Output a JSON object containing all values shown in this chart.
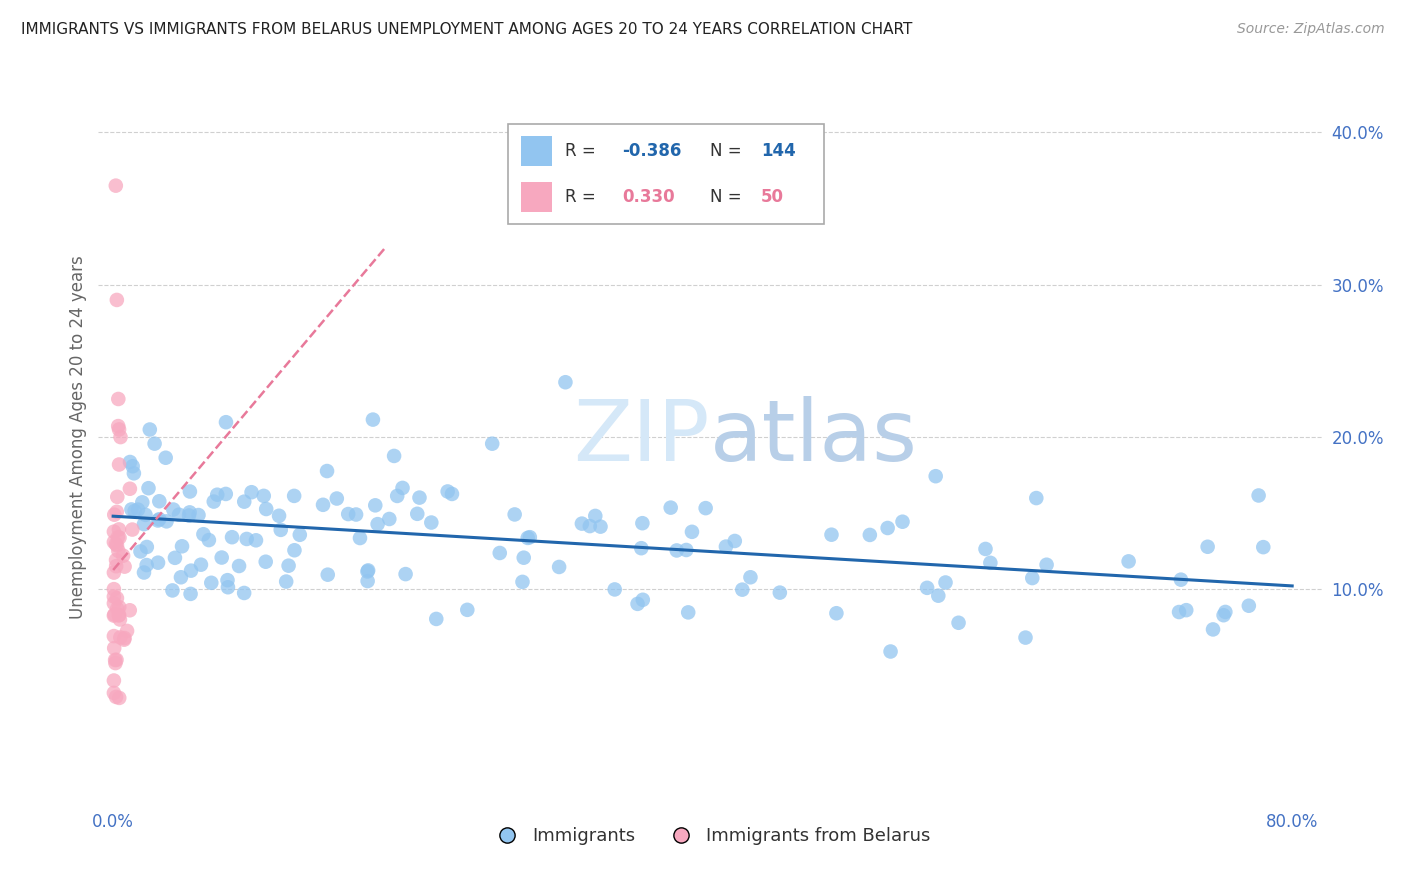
{
  "title": "IMMIGRANTS VS IMMIGRANTS FROM BELARUS UNEMPLOYMENT AMONG AGES 20 TO 24 YEARS CORRELATION CHART",
  "source": "Source: ZipAtlas.com",
  "ylabel": "Unemployment Among Ages 20 to 24 years",
  "xlim": [
    -0.01,
    0.82
  ],
  "ylim": [
    -0.04,
    0.44
  ],
  "ytick_positions": [
    0.1,
    0.2,
    0.3,
    0.4
  ],
  "ytick_labels": [
    "10.0%",
    "20.0%",
    "30.0%",
    "40.0%"
  ],
  "blue_color": "#92c5f0",
  "pink_color": "#f7a8bf",
  "blue_line_color": "#2166ac",
  "pink_line_color": "#e8799a",
  "grid_color": "#d0d0d0",
  "watermark_color": "#d5e8f8",
  "title_color": "#222222",
  "axis_tick_color": "#4472c4",
  "legend_border_color": "#aaaaaa"
}
